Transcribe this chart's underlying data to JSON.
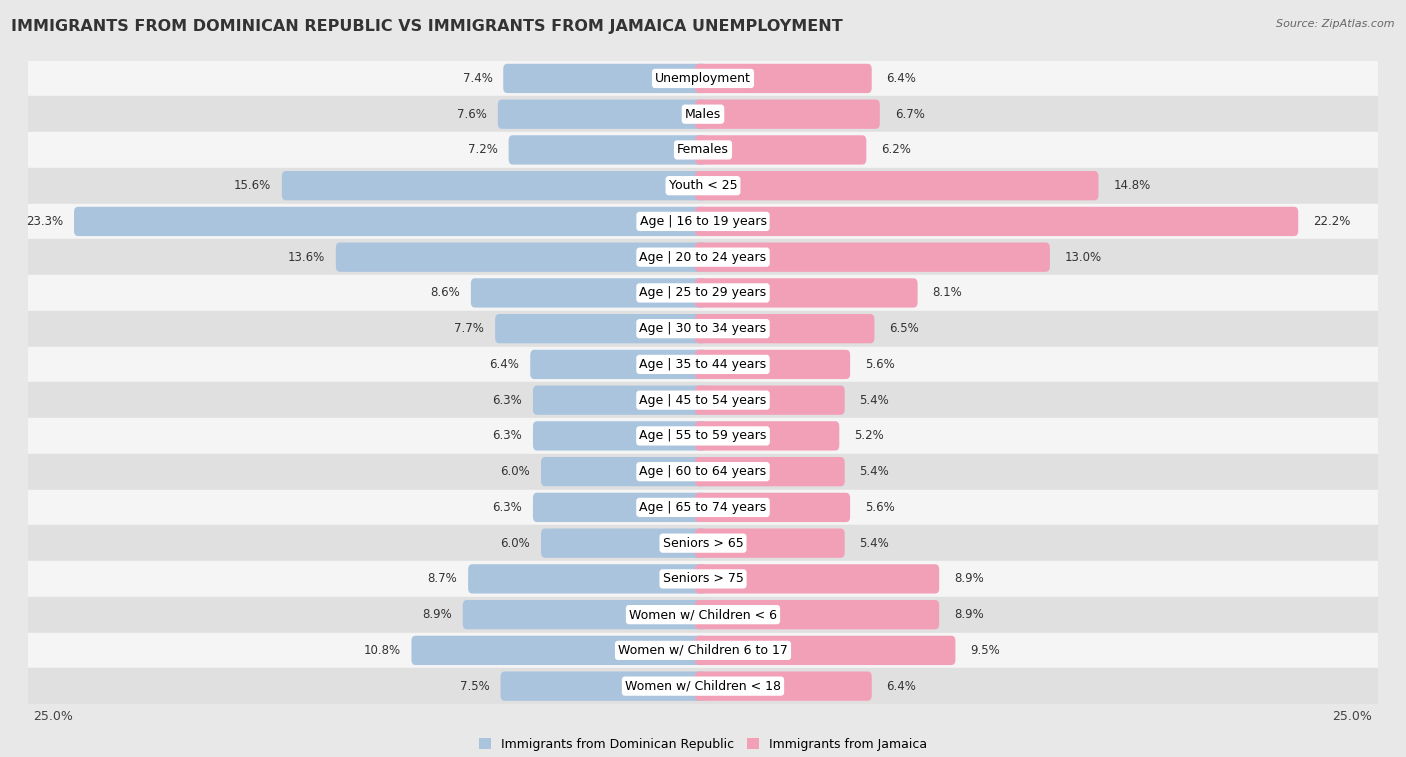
{
  "title": "IMMIGRANTS FROM DOMINICAN REPUBLIC VS IMMIGRANTS FROM JAMAICA UNEMPLOYMENT",
  "source": "Source: ZipAtlas.com",
  "categories": [
    "Unemployment",
    "Males",
    "Females",
    "Youth < 25",
    "Age | 16 to 19 years",
    "Age | 20 to 24 years",
    "Age | 25 to 29 years",
    "Age | 30 to 34 years",
    "Age | 35 to 44 years",
    "Age | 45 to 54 years",
    "Age | 55 to 59 years",
    "Age | 60 to 64 years",
    "Age | 65 to 74 years",
    "Seniors > 65",
    "Seniors > 75",
    "Women w/ Children < 6",
    "Women w/ Children 6 to 17",
    "Women w/ Children < 18"
  ],
  "left_values": [
    7.4,
    7.6,
    7.2,
    15.6,
    23.3,
    13.6,
    8.6,
    7.7,
    6.4,
    6.3,
    6.3,
    6.0,
    6.3,
    6.0,
    8.7,
    8.9,
    10.8,
    7.5
  ],
  "right_values": [
    6.4,
    6.7,
    6.2,
    14.8,
    22.2,
    13.0,
    8.1,
    6.5,
    5.6,
    5.4,
    5.2,
    5.4,
    5.6,
    5.4,
    8.9,
    8.9,
    9.5,
    6.4
  ],
  "left_color": "#aac4de",
  "right_color": "#f2a0b8",
  "axis_max": 25.0,
  "bg_color": "#e8e8e8",
  "row_bg_colors": [
    "#f5f5f5",
    "#e0e0e0"
  ],
  "legend_left": "Immigrants from Dominican Republic",
  "legend_right": "Immigrants from Jamaica",
  "title_fontsize": 11.5,
  "label_fontsize": 9,
  "value_fontsize": 8.5,
  "axis_label_fontsize": 9
}
